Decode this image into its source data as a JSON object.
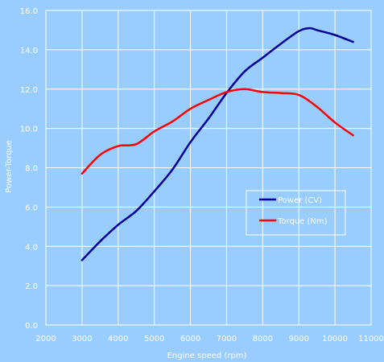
{
  "colors": {
    "background": "#99ccff",
    "plot_border": "#ffffff",
    "gridlines": "#ffffff",
    "text": "#ffffff",
    "power": "#000099",
    "torque": "#ff0000"
  },
  "chart_data": {
    "type": "line",
    "xlabel": "Engine speed (rpm)",
    "ylabel": "Power-Torque",
    "xlim": [
      2000,
      11000
    ],
    "ylim": [
      0,
      16
    ],
    "x_ticks": [
      2000,
      3000,
      4000,
      5000,
      6000,
      7000,
      8000,
      9000,
      10000,
      11000
    ],
    "y_ticks": [
      0,
      2,
      4,
      6,
      8,
      10,
      12,
      14,
      16
    ],
    "y_tick_labels": [
      "0.0",
      "2.0",
      "4.0",
      "6.0",
      "8.0",
      "10.0",
      "12.0",
      "14.0",
      "16.0"
    ],
    "grid": true,
    "legend_position": "center-right",
    "series": [
      {
        "name": "Power (CV)",
        "color": "#000099",
        "x": [
          3000,
          3500,
          4000,
          4500,
          5000,
          5500,
          6000,
          6500,
          7000,
          7500,
          8000,
          8500,
          9000,
          9300,
          9500,
          10000,
          10500
        ],
        "y": [
          3.3,
          4.25,
          5.1,
          5.8,
          6.8,
          7.9,
          9.3,
          10.5,
          11.8,
          12.9,
          13.6,
          14.3,
          14.95,
          15.1,
          15.0,
          14.75,
          14.4
        ]
      },
      {
        "name": "Torque (Nm)",
        "color": "#ff0000",
        "x": [
          3000,
          3500,
          4000,
          4500,
          5000,
          5500,
          6000,
          6500,
          7000,
          7500,
          8000,
          8500,
          9000,
          9500,
          10000,
          10500
        ],
        "y": [
          7.7,
          8.65,
          9.1,
          9.2,
          9.85,
          10.35,
          11.0,
          11.45,
          11.85,
          12.0,
          11.85,
          11.8,
          11.7,
          11.1,
          10.3,
          9.65
        ]
      }
    ]
  }
}
